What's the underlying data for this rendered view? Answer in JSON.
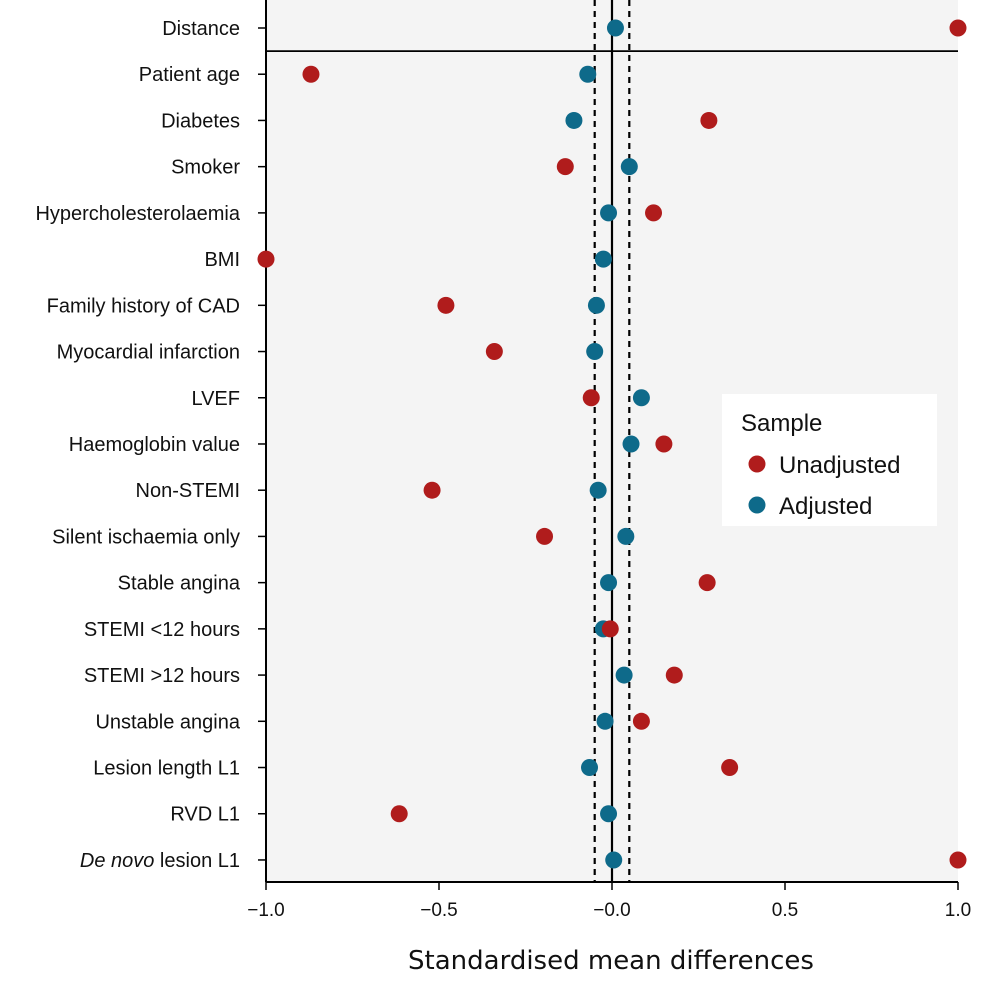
{
  "chart_data": {
    "type": "scatter",
    "title": "",
    "xlabel": "Standardised mean differences",
    "ylabel": "",
    "xlim": [
      -1.0,
      1.0
    ],
    "xticks": [
      -1.0,
      -0.5,
      0.0,
      0.5,
      1.0
    ],
    "xtick_labels": [
      "−1.0",
      "−0.5",
      "−0.0",
      "0.5",
      "1.0"
    ],
    "reference_lines": [
      -0.05,
      0.0,
      0.05
    ],
    "grid": false,
    "legend": {
      "title": "Sample",
      "position": "right"
    },
    "categories": [
      {
        "prefix": "",
        "italic": "",
        "suffix": "Distance"
      },
      {
        "prefix": "",
        "italic": "",
        "suffix": "Patient age"
      },
      {
        "prefix": "",
        "italic": "",
        "suffix": "Diabetes"
      },
      {
        "prefix": "",
        "italic": "",
        "suffix": "Smoker"
      },
      {
        "prefix": "",
        "italic": "",
        "suffix": "Hypercholesterolaemia"
      },
      {
        "prefix": "",
        "italic": "",
        "suffix": "BMI"
      },
      {
        "prefix": "",
        "italic": "",
        "suffix": "Family history of CAD"
      },
      {
        "prefix": "",
        "italic": "",
        "suffix": "Myocardial infarction"
      },
      {
        "prefix": "",
        "italic": "",
        "suffix": "LVEF"
      },
      {
        "prefix": "",
        "italic": "",
        "suffix": "Haemoglobin value"
      },
      {
        "prefix": "",
        "italic": "",
        "suffix": "Non-STEMI"
      },
      {
        "prefix": "",
        "italic": "",
        "suffix": "Silent ischaemia only"
      },
      {
        "prefix": "",
        "italic": "",
        "suffix": "Stable angina"
      },
      {
        "prefix": "",
        "italic": "",
        "suffix": "STEMI <12 hours"
      },
      {
        "prefix": "",
        "italic": "",
        "suffix": "STEMI >12 hours"
      },
      {
        "prefix": "",
        "italic": "",
        "suffix": "Unstable angina"
      },
      {
        "prefix": "",
        "italic": "",
        "suffix": "Lesion length L1"
      },
      {
        "prefix": "",
        "italic": "",
        "suffix": "RVD L1"
      },
      {
        "prefix": "",
        "italic": "De novo",
        "suffix": " lesion L1"
      }
    ],
    "series": [
      {
        "name": "Unadjusted",
        "color": "#b01c1c",
        "values": [
          1.0,
          -0.87,
          0.28,
          -0.135,
          0.12,
          -1.0,
          -0.48,
          -0.34,
          -0.06,
          0.15,
          -0.52,
          -0.195,
          0.275,
          -0.005,
          0.18,
          0.085,
          0.34,
          -0.615,
          1.0
        ]
      },
      {
        "name": "Adjusted",
        "color": "#0e6a8a",
        "values": [
          0.01,
          -0.07,
          -0.11,
          0.05,
          -0.01,
          -0.025,
          -0.045,
          -0.05,
          0.085,
          0.055,
          -0.04,
          0.04,
          -0.01,
          -0.025,
          0.035,
          -0.02,
          -0.065,
          -0.01,
          0.005
        ]
      }
    ]
  },
  "colors": {
    "panel_background": "#f4f4f4",
    "reference_line": "#000000",
    "legend_background": "#ffffff"
  }
}
